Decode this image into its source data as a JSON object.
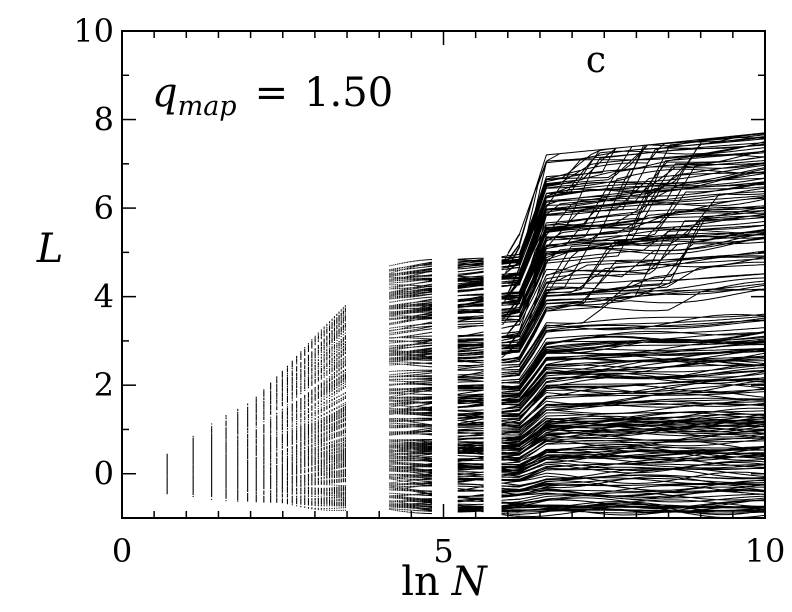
{
  "chart_data": {
    "type": "scatter",
    "panel_label": "c",
    "annotation": {
      "symbol": "q",
      "subscript": "map",
      "relation": "=",
      "value": "1.50"
    },
    "xlabel": {
      "prefix": "ln",
      "variable": "N"
    },
    "ylabel": "L",
    "xlim": [
      0,
      10
    ],
    "ylim": [
      -1,
      10
    ],
    "x_ticks": [
      0,
      5,
      10
    ],
    "y_ticks": [
      0,
      2,
      4,
      6,
      8,
      10
    ],
    "x_minor_step": 0.5,
    "y_minor_step": 1,
    "grid": false,
    "legend": "none",
    "color": "#000000",
    "description_of_series": {
      "trajectory_count": 260,
      "x_start": 0.69,
      "x_end": 10,
      "initial_spread": [
        -0.4,
        0.4
      ],
      "upper_envelope": [
        {
          "x": 0.69,
          "y": 0.4
        },
        {
          "x": 2,
          "y": 1.6
        },
        {
          "x": 3,
          "y": 3.2
        },
        {
          "x": 4,
          "y": 4.7
        },
        {
          "x": 5,
          "y": 4.9
        },
        {
          "x": 6.2,
          "y": 5.1
        },
        {
          "x": 6.6,
          "y": 6.9
        },
        {
          "x": 8,
          "y": 7.1
        },
        {
          "x": 10,
          "y": 7.4
        }
      ],
      "lower_envelope": [
        {
          "x": 0.69,
          "y": -0.4
        },
        {
          "x": 3,
          "y": -0.7
        },
        {
          "x": 5,
          "y": -0.85
        },
        {
          "x": 10,
          "y": -0.9
        }
      ]
    }
  }
}
